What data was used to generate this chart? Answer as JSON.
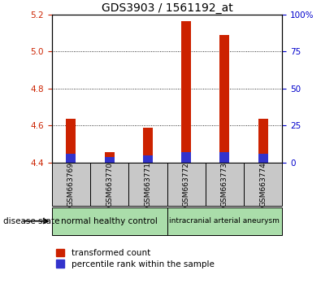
{
  "title": "GDS3903 / 1561192_at",
  "samples": [
    "GSM663769",
    "GSM663770",
    "GSM663771",
    "GSM663772",
    "GSM663773",
    "GSM663774"
  ],
  "transformed_count": [
    4.635,
    4.455,
    4.59,
    5.165,
    5.09,
    4.635
  ],
  "percentile_rank": [
    6,
    4,
    5,
    7,
    7,
    6
  ],
  "baseline": 4.4,
  "ylim_left": [
    4.4,
    5.2
  ],
  "ylim_right": [
    0,
    100
  ],
  "yticks_left": [
    4.4,
    4.6,
    4.8,
    5.0,
    5.2
  ],
  "yticks_right": [
    0,
    25,
    50,
    75,
    100
  ],
  "bar_color_red": "#cc2200",
  "bar_color_blue": "#3333cc",
  "plot_bg_color": "#ffffff",
  "group1_label": "normal healthy control",
  "group2_label": "intracranial arterial aneurysm",
  "group1_color": "#aaddaa",
  "group2_color": "#aaddaa",
  "sample_box_color": "#c8c8c8",
  "disease_state_label": "disease state",
  "legend1": "transformed count",
  "legend2": "percentile rank within the sample",
  "left_axis_color": "#cc2200",
  "right_axis_color": "#0000cc",
  "title_fontsize": 10,
  "tick_fontsize": 7.5,
  "bar_width": 0.25
}
